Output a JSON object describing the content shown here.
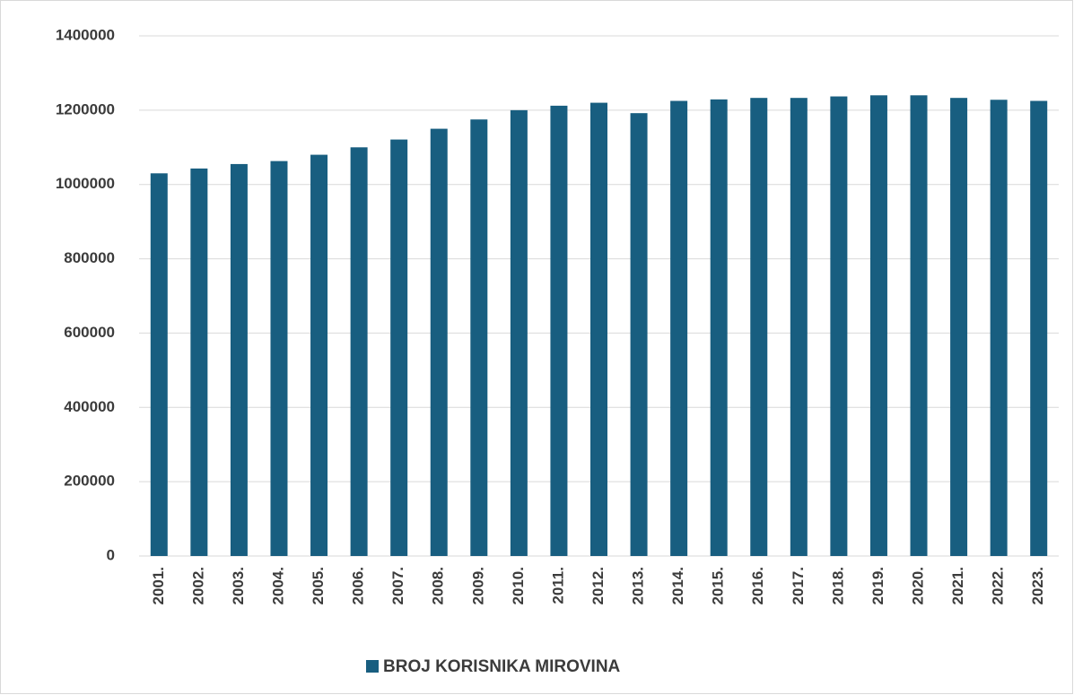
{
  "chart_data": {
    "type": "bar",
    "categories": [
      "2001.",
      "2002.",
      "2003.",
      "2004.",
      "2005.",
      "2006.",
      "2007.",
      "2008.",
      "2009.",
      "2010.",
      "2011.",
      "2012.",
      "2013.",
      "2014.",
      "2015.",
      "2016.",
      "2017.",
      "2018.",
      "2019.",
      "2020.",
      "2021.",
      "2022.",
      "2023."
    ],
    "series": [
      {
        "name": "BROJ KORISNIKA MIROVINA",
        "color": "#185e80",
        "values": [
          1030000,
          1043000,
          1055000,
          1063000,
          1080000,
          1100000,
          1121000,
          1150000,
          1175000,
          1200000,
          1212000,
          1220000,
          1192000,
          1225000,
          1229000,
          1233000,
          1233000,
          1237000,
          1240000,
          1240000,
          1233000,
          1228000,
          1225000
        ]
      }
    ],
    "ylim": [
      0,
      1400000
    ],
    "yticks": [
      0,
      200000,
      400000,
      600000,
      800000,
      1000000,
      1200000,
      1400000
    ],
    "grid": true,
    "legend": "bottom"
  }
}
